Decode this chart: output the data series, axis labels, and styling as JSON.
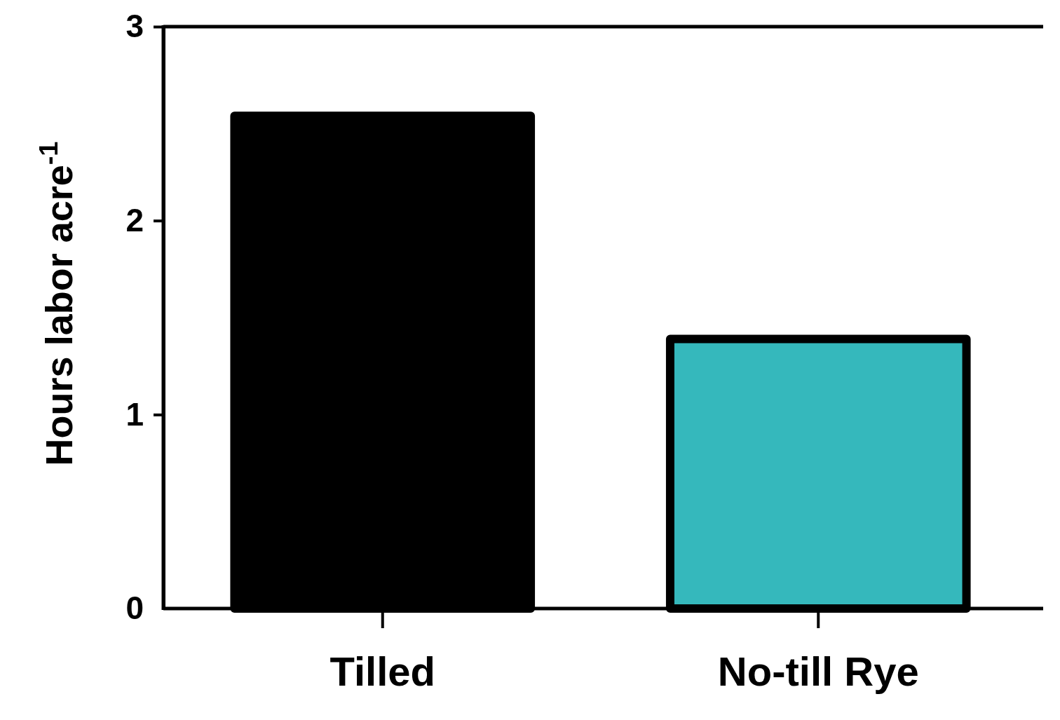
{
  "chart_data": {
    "type": "bar",
    "ylabel": "Hours labor acre$^{-1}$",
    "categories": [
      "Tilled",
      "No-till Rye"
    ],
    "values": [
      2.54,
      1.39
    ],
    "colors": [
      "#000000",
      "#35b8bc"
    ],
    "ylim": [
      0,
      3
    ],
    "yticks": [
      0,
      1,
      2,
      3
    ],
    "grid": false
  }
}
